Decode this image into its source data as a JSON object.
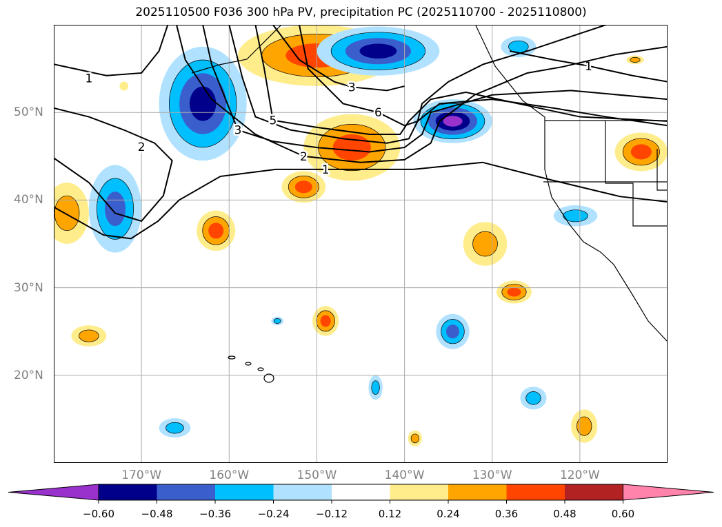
{
  "title": "2025110500 F036 300 hPa PV, precipitation PC (2025110700 - 2025110800)",
  "extent": {
    "lon": [
      -180,
      -110
    ],
    "lat": [
      10,
      60
    ]
  },
  "lon_ticks": [
    {
      "value": -170,
      "label": "170°W"
    },
    {
      "value": -160,
      "label": "160°W"
    },
    {
      "value": -150,
      "label": "150°W"
    },
    {
      "value": -140,
      "label": "140°W"
    },
    {
      "value": -130,
      "label": "130°W"
    },
    {
      "value": -120,
      "label": "120°W"
    }
  ],
  "lat_ticks": [
    {
      "value": 50,
      "label": "50°N"
    },
    {
      "value": 40,
      "label": "40°N"
    },
    {
      "value": 30,
      "label": "30°N"
    },
    {
      "value": 20,
      "label": "20°N"
    }
  ],
  "colorbar": {
    "colors": [
      "#9932cc",
      "#00008b",
      "#3a5fcd",
      "#00bfff",
      "#b0e2ff",
      "#ffffff",
      "#ffec8b",
      "#ffa500",
      "#ff4500",
      "#b22222",
      "#ff83aa"
    ],
    "ticks": [
      "−0.60",
      "−0.48",
      "−0.36",
      "−0.24",
      "−0.12",
      "0.12",
      "0.24",
      "0.36",
      "0.48",
      "0.60"
    ]
  },
  "precip_blobs": [
    {
      "lon": -163,
      "lat": 51,
      "rx": 5,
      "ry": 6.5,
      "levels": [
        4,
        3,
        2,
        1
      ]
    },
    {
      "lon": -173,
      "lat": 39,
      "rx": 3,
      "ry": 5,
      "levels": [
        4,
        3,
        2
      ]
    },
    {
      "lon": -150,
      "lat": 56.5,
      "rx": 9,
      "ry": 3.5,
      "levels": [
        6,
        7,
        8
      ]
    },
    {
      "lon": -143,
      "lat": 57,
      "rx": 7,
      "ry": 2.8,
      "levels": [
        4,
        3,
        2,
        1
      ]
    },
    {
      "lon": -146,
      "lat": 46,
      "rx": 5.5,
      "ry": 3.8,
      "levels": [
        6,
        7,
        8
      ]
    },
    {
      "lon": -151.5,
      "lat": 41.5,
      "rx": 2.5,
      "ry": 1.8,
      "levels": [
        6,
        7,
        8
      ]
    },
    {
      "lon": -134.5,
      "lat": 49,
      "rx": 4.5,
      "ry": 2.5,
      "levels": [
        4,
        3,
        2,
        1,
        0
      ]
    },
    {
      "lon": -127,
      "lat": 57.5,
      "rx": 2,
      "ry": 1.2,
      "levels": [
        4,
        3
      ]
    },
    {
      "lon": -113,
      "lat": 45.5,
      "rx": 3,
      "ry": 2.2,
      "levels": [
        6,
        7,
        8
      ]
    },
    {
      "lon": -178.5,
      "lat": 38.5,
      "rx": 2.5,
      "ry": 3.5,
      "levels": [
        6,
        7
      ]
    },
    {
      "lon": -161.5,
      "lat": 36.5,
      "rx": 2.2,
      "ry": 2.3,
      "levels": [
        6,
        7,
        8
      ]
    },
    {
      "lon": -130.8,
      "lat": 35,
      "rx": 2.5,
      "ry": 2.5,
      "levels": [
        6,
        7
      ]
    },
    {
      "lon": -127.5,
      "lat": 29.5,
      "rx": 2,
      "ry": 1.3,
      "levels": [
        6,
        7,
        8
      ]
    },
    {
      "lon": -149,
      "lat": 26.2,
      "rx": 1.5,
      "ry": 1.7,
      "levels": [
        6,
        7,
        8
      ]
    },
    {
      "lon": -134.5,
      "lat": 25,
      "rx": 1.9,
      "ry": 2,
      "levels": [
        4,
        3,
        2
      ]
    },
    {
      "lon": -176,
      "lat": 24.5,
      "rx": 2,
      "ry": 1.2,
      "levels": [
        6,
        7
      ]
    },
    {
      "lon": -154.5,
      "lat": 26.2,
      "rx": 0.7,
      "ry": 0.5,
      "levels": [
        4,
        3
      ]
    },
    {
      "lon": -143.3,
      "lat": 18.6,
      "rx": 0.8,
      "ry": 1.4,
      "levels": [
        4,
        3
      ]
    },
    {
      "lon": -125.3,
      "lat": 17.4,
      "rx": 1.5,
      "ry": 1.3,
      "levels": [
        4,
        3
      ]
    },
    {
      "lon": -166.2,
      "lat": 14,
      "rx": 1.8,
      "ry": 1.1,
      "levels": [
        4,
        3
      ]
    },
    {
      "lon": -138.8,
      "lat": 12.8,
      "rx": 0.8,
      "ry": 0.9,
      "levels": [
        6,
        7
      ]
    },
    {
      "lon": -119.5,
      "lat": 14.2,
      "rx": 1.5,
      "ry": 1.9,
      "levels": [
        6,
        7
      ]
    },
    {
      "lon": -113.7,
      "lat": 56,
      "rx": 1,
      "ry": 0.5,
      "levels": [
        6,
        7
      ]
    },
    {
      "lon": -120.5,
      "lat": 38.2,
      "rx": 2.5,
      "ry": 1.2,
      "levels": [
        4,
        3
      ]
    },
    {
      "lon": -172,
      "lat": 53,
      "rx": 0.5,
      "ry": 0.5,
      "levels": [
        6
      ]
    }
  ],
  "pv_contours": [
    {
      "label": "1",
      "at": [
        -149,
        43.5
      ],
      "pts": [
        [
          -180,
          39.2
        ],
        [
          -174.3,
          36
        ],
        [
          -171.2,
          35.6
        ],
        [
          -168.1,
          37.6
        ],
        [
          -165.7,
          40
        ],
        [
          -161,
          42.7
        ],
        [
          -154.7,
          43.5
        ],
        [
          -149.2,
          43.5
        ],
        [
          -139,
          43.5
        ],
        [
          -131.1,
          44.3
        ],
        [
          -123.3,
          42.3
        ],
        [
          -115.4,
          40.4
        ],
        [
          -110,
          39.8
        ]
      ]
    },
    {
      "label": "1",
      "at": [
        -176,
        53.9
      ],
      "pts": [
        [
          -180,
          55.5
        ],
        [
          -174,
          54.2
        ],
        [
          -170,
          54.5
        ],
        [
          -168,
          57
        ],
        [
          -167,
          60
        ]
      ]
    },
    {
      "label": "1",
      "at": [
        -119,
        55.3
      ],
      "pts": [
        [
          -128,
          57
        ],
        [
          -123,
          56
        ],
        [
          -119,
          55.3
        ],
        [
          -114,
          54.2
        ],
        [
          -110,
          53.5
        ]
      ]
    },
    {
      "label": "2",
      "at": [
        -170,
        46.1
      ],
      "pts": [
        [
          -180,
          44.8
        ],
        [
          -176,
          42
        ],
        [
          -173,
          38.5
        ],
        [
          -170,
          37.6
        ],
        [
          -167.5,
          40.5
        ],
        [
          -166.5,
          44.5
        ],
        [
          -168.5,
          46.5
        ],
        [
          -172,
          48
        ],
        [
          -176,
          49.5
        ],
        [
          -180,
          50.5
        ]
      ]
    },
    {
      "label": "2",
      "at": [
        -151.5,
        45
      ],
      "pts": [
        [
          -166,
          60
        ],
        [
          -165,
          56
        ],
        [
          -162,
          51.5
        ],
        [
          -157,
          47.5
        ],
        [
          -151.5,
          45
        ],
        [
          -145,
          44.3
        ],
        [
          -140,
          44.6
        ],
        [
          -137,
          46.5
        ],
        [
          -136,
          49
        ],
        [
          -132,
          52
        ],
        [
          -126,
          54.5
        ],
        [
          -122,
          55.2
        ],
        [
          -116,
          56.6
        ],
        [
          -110,
          57.5
        ]
      ]
    },
    {
      "label": "3",
      "at": [
        -159,
        48
      ],
      "pts": [
        [
          -163,
          60
        ],
        [
          -162,
          55.5
        ],
        [
          -159,
          48
        ],
        [
          -155,
          46.7
        ],
        [
          -150,
          46
        ],
        [
          -144,
          45.5
        ],
        [
          -140,
          46
        ],
        [
          -138,
          47.5
        ],
        [
          -137,
          50
        ],
        [
          -130,
          52
        ],
        [
          -121,
          52.5
        ],
        [
          -110,
          51.5
        ]
      ]
    },
    {
      "label": "3",
      "at": [
        -146,
        52.9
      ],
      "pts": [
        [
          -155,
          60
        ],
        [
          -152,
          56
        ],
        [
          -148,
          53.5
        ],
        [
          -146,
          52.9
        ],
        [
          -142,
          52.5
        ],
        [
          -140,
          53
        ]
      ]
    },
    {
      "label": "",
      "at": null,
      "pts": [
        [
          -160,
          60
        ],
        [
          -158.5,
          54
        ],
        [
          -157,
          49.5
        ],
        [
          -153,
          48
        ],
        [
          -147,
          47
        ],
        [
          -142,
          46.5
        ],
        [
          -139.5,
          47
        ],
        [
          -138.5,
          49
        ],
        [
          -136,
          51
        ],
        [
          -130,
          51.5
        ],
        [
          -123,
          50.5
        ],
        [
          -117,
          49.5
        ],
        [
          -110,
          48.5
        ]
      ]
    },
    {
      "label": "5",
      "at": [
        -155,
        49.1
      ],
      "pts": [
        [
          -157,
          60
        ],
        [
          -156,
          55
        ],
        [
          -155,
          49.1
        ],
        [
          -150,
          48.3
        ],
        [
          -144,
          47.5
        ],
        [
          -140.5,
          47.5
        ],
        [
          -139.5,
          49
        ],
        [
          -137,
          51.5
        ],
        [
          -133,
          52.3
        ],
        [
          -127,
          51
        ],
        [
          -120,
          49.5
        ],
        [
          -110,
          49
        ]
      ]
    },
    {
      "label": "6",
      "at": [
        -143,
        50
      ],
      "pts": [
        [
          -152,
          60
        ],
        [
          -151,
          55
        ],
        [
          -147,
          51
        ],
        [
          -143,
          50
        ],
        [
          -140,
          48.5
        ],
        [
          -138.5,
          49
        ],
        [
          -138,
          51
        ],
        [
          -135,
          53.5
        ],
        [
          -131,
          55.5
        ],
        [
          -126,
          57
        ],
        [
          -120,
          59
        ],
        [
          -117,
          60
        ]
      ]
    }
  ]
}
